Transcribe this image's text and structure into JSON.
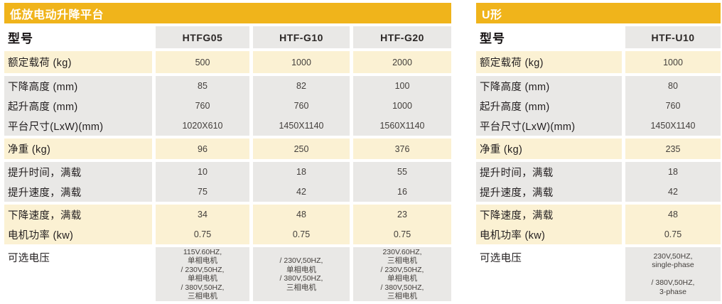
{
  "colors": {
    "header_bg": "#F0B41B",
    "header_text": "#FFFFFF",
    "cream_row_bg": "#FBF1D3",
    "gray_row_bg": "#E9E8E6",
    "label_text": "#221E1F",
    "value_text": "#433F3C"
  },
  "left_table": {
    "title": "低放电动升降平台",
    "model_label": "型号",
    "models": [
      "HTFG05",
      "HTF-G10",
      "HTF-G20"
    ],
    "blocks": [
      {
        "tone": "cream",
        "rows": [
          {
            "label": "额定载荷 (kg)",
            "values": [
              "500",
              "1000",
              "2000"
            ]
          }
        ]
      },
      {
        "tone": "gray",
        "rows": [
          {
            "label": "下降高度 (mm)",
            "values": [
              "85",
              "82",
              "100"
            ]
          },
          {
            "label": "起升高度 (mm)",
            "values": [
              "760",
              "760",
              "1000"
            ]
          },
          {
            "label": "平台尺寸(LxW)(mm)",
            "values": [
              "1020X610",
              "1450X1140",
              "1560X1140"
            ]
          }
        ]
      },
      {
        "tone": "cream",
        "rows": [
          {
            "label": "净重 (kg)",
            "values": [
              "96",
              "250",
              "376"
            ]
          }
        ]
      },
      {
        "tone": "gray",
        "rows": [
          {
            "label": "提升时间，满载",
            "values": [
              "10",
              "18",
              "55"
            ]
          },
          {
            "label": "提升速度，满载",
            "values": [
              "75",
              "42",
              "16"
            ]
          }
        ]
      },
      {
        "tone": "cream",
        "rows": [
          {
            "label": "下降速度，满载",
            "values": [
              "34",
              "48",
              "23"
            ]
          },
          {
            "label": "电机功率 (kw)",
            "values": [
              "0.75",
              "0.75",
              "0.75"
            ]
          }
        ]
      },
      {
        "tone": "gray",
        "rows": [
          {
            "label": "可选电压",
            "values": [
              [
                "115V.60HZ,",
                "单相电机",
                "/ 230V,50HZ,",
                "单相电机",
                "/ 380V,50HZ,",
                "三相电机"
              ],
              [
                "/ 230V,50HZ,",
                "单相电机",
                "/ 380V,50HZ,",
                "三相电机"
              ],
              [
                "230V.60HZ,",
                "三相电机",
                "/ 230V,50HZ,",
                "单相电机",
                "/ 380V,50HZ,",
                "三相电机"
              ]
            ]
          }
        ]
      }
    ]
  },
  "right_table": {
    "title": "U形",
    "model_label": "型号",
    "models": [
      "HTF-U10"
    ],
    "blocks": [
      {
        "tone": "cream",
        "rows": [
          {
            "label": "额定载荷 (kg)",
            "values": [
              "1000"
            ]
          }
        ]
      },
      {
        "tone": "gray",
        "rows": [
          {
            "label": "下降高度 (mm)",
            "values": [
              "80"
            ]
          },
          {
            "label": "起升高度 (mm)",
            "values": [
              "760"
            ]
          },
          {
            "label": "平台尺寸(LxW)(mm)",
            "values": [
              "1450X1140"
            ]
          }
        ]
      },
      {
        "tone": "cream",
        "rows": [
          {
            "label": "净重 (kg)",
            "values": [
              "235"
            ]
          }
        ]
      },
      {
        "tone": "gray",
        "rows": [
          {
            "label": "提升时间，满载",
            "values": [
              "18"
            ]
          },
          {
            "label": "提升速度，满载",
            "values": [
              "42"
            ]
          }
        ]
      },
      {
        "tone": "cream",
        "rows": [
          {
            "label": "下降速度，满载",
            "values": [
              "48"
            ]
          },
          {
            "label": "电机功率 (kw)",
            "values": [
              "0.75"
            ]
          }
        ]
      },
      {
        "tone": "gray",
        "rows": [
          {
            "label": "可选电压",
            "values": [
              [
                "230V,50HZ,",
                "single-phase",
                "",
                "/  380V,50HZ,",
                "3-phase"
              ]
            ]
          }
        ]
      }
    ]
  }
}
